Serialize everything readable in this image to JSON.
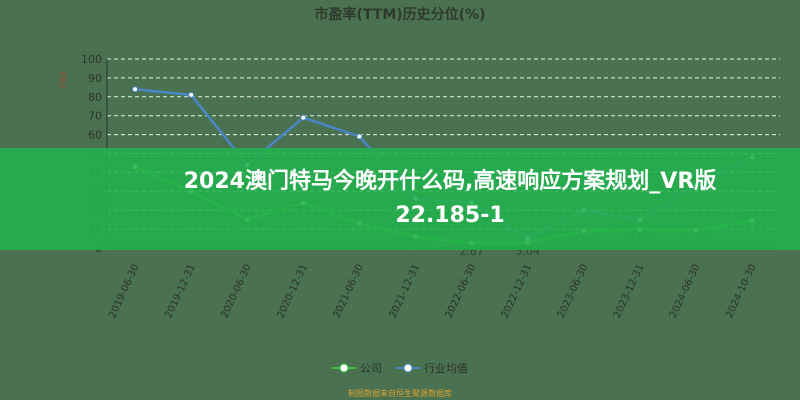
{
  "chart_data": {
    "type": "line",
    "title": "市盈率(TTM)历史分位(%)",
    "ylabel": "(%)",
    "ylim": [
      0,
      100
    ],
    "yticks": [
      0,
      10,
      20,
      30,
      40,
      50,
      60,
      70,
      80,
      90,
      100
    ],
    "grid": true,
    "legend_placement": "bottom",
    "categories": [
      "2019-06-30",
      "2019-12-31",
      "2020-06-30",
      "2020-12-31",
      "2021-06-30",
      "2021-12-31",
      "2022-06-30",
      "2022-12-31",
      "2023-06-30",
      "2023-12-31",
      "2024-06-30",
      "2024-10-30"
    ],
    "series": [
      {
        "name": "公司",
        "color": "#3fbf3f",
        "values": [
          43,
          30,
          15.17,
          23.84,
          13,
          6,
          2.67,
          3.04,
          9.01,
          9.81,
          9.36,
          14.44
        ],
        "labels": [
          "",
          "",
          "15.17",
          "23.84",
          "",
          "6",
          "2.67",
          "3.04",
          "9.01",
          "9.81",
          "9.36",
          "14.44"
        ]
      },
      {
        "name": "行业均值",
        "color": "#4a86c8",
        "values": [
          84,
          81,
          44,
          69,
          59,
          26,
          24,
          5,
          20,
          15,
          33,
          48
        ]
      }
    ]
  },
  "banner": {
    "line1": "2024澳门特马今晚开什么码,高速响应方案规划_VR版",
    "line2": "22.185-1"
  },
  "footnote": "制图数据来自恒生聚源数据库"
}
